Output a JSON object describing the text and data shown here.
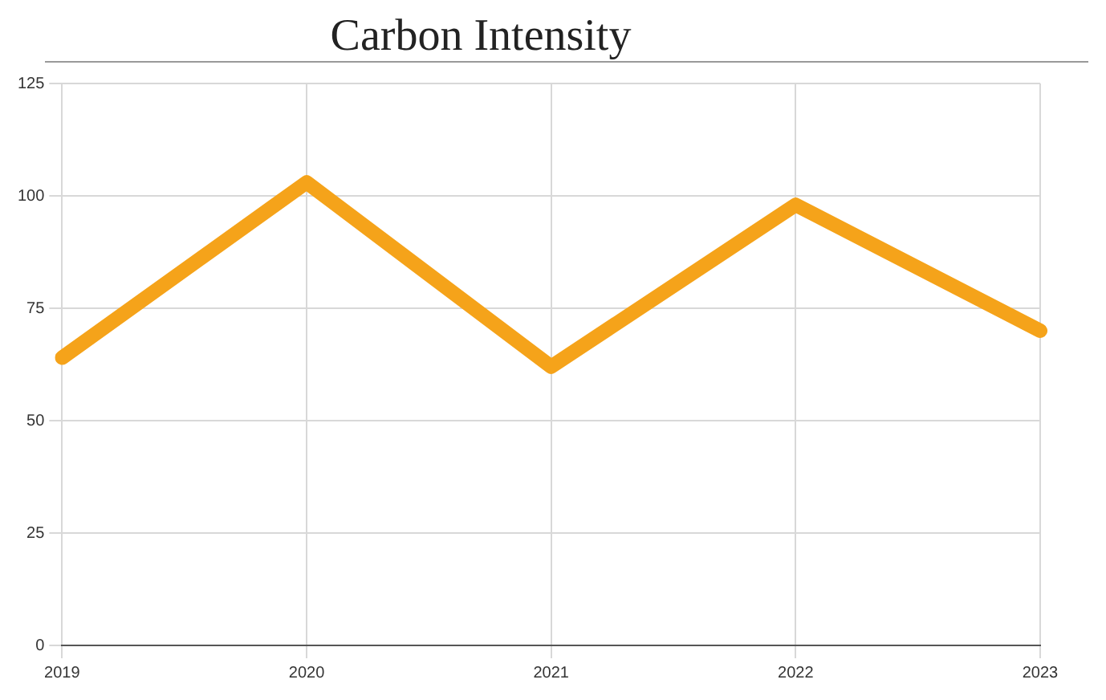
{
  "chart_data": {
    "type": "line",
    "title": "Carbon Intensity",
    "categories": [
      "2019",
      "2020",
      "2021",
      "2022",
      "2023"
    ],
    "series": [
      {
        "color": "#f5a31a",
        "values": [
          64,
          103,
          62,
          98,
          70
        ]
      }
    ],
    "ylim": [
      0,
      125
    ],
    "yticks": [
      0,
      25,
      50,
      75,
      100,
      125
    ],
    "grid": true,
    "legend": false,
    "marker": "none",
    "line_style": "solid"
  }
}
